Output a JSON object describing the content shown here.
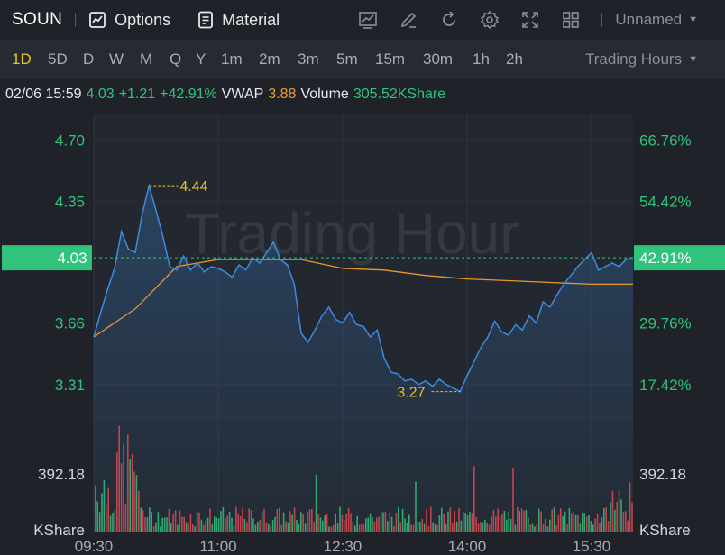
{
  "toolbar": {
    "symbol": "SOUN",
    "options_label": "Options",
    "material_label": "Material",
    "tool_icons": [
      "indicator-icon",
      "draw-pen-icon",
      "refresh-icon",
      "settings-gear-icon",
      "fullscreen-icon",
      "layout-grid-icon"
    ],
    "layout_name": "Unnamed"
  },
  "timeframes": [
    "1D",
    "5D",
    "D",
    "W",
    "M",
    "Q",
    "Y",
    "1m",
    "2m",
    "3m",
    "5m",
    "15m",
    "30m",
    "1h",
    "2h"
  ],
  "active_timeframe": "1D",
  "session_selector": "Trading Hours",
  "quote": {
    "datetime": "02/06 15:59",
    "price": "4.03",
    "change": "+1.21",
    "change_pct": "+42.91%",
    "vwap_label": "VWAP",
    "vwap": "3.88",
    "volume_label": "Volume",
    "volume": "305.52KShare"
  },
  "chart": {
    "watermark": "Trading Hour",
    "price_ticks": [
      "4.70",
      "4.35",
      "3.66",
      "3.31"
    ],
    "pct_ticks": [
      "66.76%",
      "54.42%",
      "29.76%",
      "17.42%"
    ],
    "current_price_tag": "4.03",
    "current_pct_tag": "42.91%",
    "high_label": "4.44",
    "low_label": "3.27",
    "volume_tick": "392.18",
    "volume_unit": "KShare",
    "time_ticks": [
      "09:30",
      "11:00",
      "12:30",
      "14:00",
      "15:30"
    ],
    "colors": {
      "price_line": "#3d8be0",
      "vwap_line": "#e8962e",
      "up": "#31c27c",
      "down": "#e4474f",
      "highlight": "#e8c21f"
    }
  },
  "chart_data": {
    "type": "line",
    "x_range": [
      "09:30",
      "16:00"
    ],
    "ylim": [
      3.15,
      4.85
    ],
    "series": [
      {
        "name": "VWAP",
        "values": [
          3.58,
          3.74,
          3.98,
          4.02,
          4.02,
          4.02,
          3.97,
          3.96,
          3.93,
          3.91,
          3.9,
          3.89,
          3.88,
          3.88
        ]
      }
    ],
    "price_points": [
      [
        "09:30",
        3.58
      ],
      [
        "09:35",
        3.72
      ],
      [
        "09:40",
        3.85
      ],
      [
        "09:45",
        3.97
      ],
      [
        "09:50",
        4.18
      ],
      [
        "09:55",
        4.08
      ],
      [
        "10:00",
        4.06
      ],
      [
        "10:05",
        4.28
      ],
      [
        "10:10",
        4.44
      ],
      [
        "10:15",
        4.3
      ],
      [
        "10:20",
        4.15
      ],
      [
        "10:25",
        3.98
      ],
      [
        "10:30",
        3.96
      ],
      [
        "10:35",
        4.04
      ],
      [
        "10:40",
        3.96
      ],
      [
        "10:45",
        4.0
      ],
      [
        "10:50",
        3.95
      ],
      [
        "10:55",
        3.98
      ],
      [
        "11:00",
        3.97
      ],
      [
        "11:05",
        3.95
      ],
      [
        "11:10",
        3.92
      ],
      [
        "11:15",
        3.99
      ],
      [
        "11:20",
        3.96
      ],
      [
        "11:25",
        4.03
      ],
      [
        "11:30",
        4.0
      ],
      [
        "11:35",
        4.06
      ],
      [
        "11:40",
        4.12
      ],
      [
        "11:45",
        4.02
      ],
      [
        "11:50",
        3.99
      ],
      [
        "11:55",
        3.88
      ],
      [
        "12:00",
        3.6
      ],
      [
        "12:05",
        3.55
      ],
      [
        "12:10",
        3.62
      ],
      [
        "12:15",
        3.7
      ],
      [
        "12:20",
        3.75
      ],
      [
        "12:25",
        3.68
      ],
      [
        "12:30",
        3.66
      ],
      [
        "12:35",
        3.72
      ],
      [
        "12:40",
        3.65
      ],
      [
        "12:45",
        3.64
      ],
      [
        "12:50",
        3.58
      ],
      [
        "12:55",
        3.62
      ],
      [
        "13:00",
        3.46
      ],
      [
        "13:05",
        3.38
      ],
      [
        "13:10",
        3.37
      ],
      [
        "13:15",
        3.33
      ],
      [
        "13:20",
        3.34
      ],
      [
        "13:25",
        3.31
      ],
      [
        "13:30",
        3.33
      ],
      [
        "13:35",
        3.3
      ],
      [
        "13:40",
        3.34
      ],
      [
        "13:45",
        3.31
      ],
      [
        "13:50",
        3.29
      ],
      [
        "13:55",
        3.27
      ],
      [
        "14:00",
        3.36
      ],
      [
        "14:05",
        3.44
      ],
      [
        "14:10",
        3.52
      ],
      [
        "14:15",
        3.58
      ],
      [
        "14:20",
        3.67
      ],
      [
        "14:25",
        3.61
      ],
      [
        "14:30",
        3.59
      ],
      [
        "14:35",
        3.65
      ],
      [
        "14:40",
        3.62
      ],
      [
        "14:45",
        3.7
      ],
      [
        "14:50",
        3.66
      ],
      [
        "14:55",
        3.78
      ],
      [
        "15:00",
        3.75
      ],
      [
        "15:05",
        3.82
      ],
      [
        "15:10",
        3.88
      ],
      [
        "15:15",
        3.93
      ],
      [
        "15:20",
        3.98
      ],
      [
        "15:25",
        4.02
      ],
      [
        "15:30",
        4.06
      ],
      [
        "15:35",
        3.96
      ],
      [
        "15:40",
        3.98
      ],
      [
        "15:45",
        4.0
      ],
      [
        "15:50",
        3.98
      ],
      [
        "15:55",
        4.02
      ],
      [
        "16:00",
        4.03
      ]
    ]
  }
}
